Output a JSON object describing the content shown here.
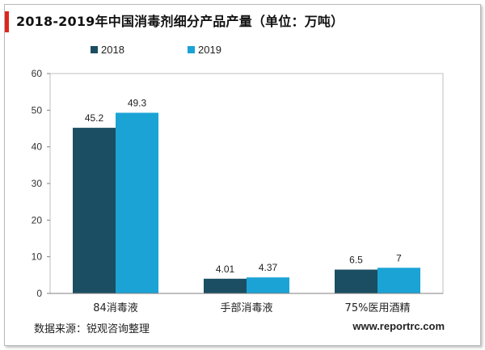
{
  "chart_data": {
    "type": "bar",
    "title": "2018-2019年中国消毒剂细分产品产量（单位：万吨）",
    "categories": [
      "84消毒液",
      "手部消毒液",
      "75%医用酒精"
    ],
    "series": [
      {
        "name": "2018",
        "values": [
          45.2,
          4.01,
          6.5
        ],
        "labels": [
          "45.2",
          "4.01",
          "6.5"
        ],
        "color": "#1b4e63"
      },
      {
        "name": "2019",
        "values": [
          49.3,
          4.37,
          7
        ],
        "labels": [
          "49.3",
          "4.37",
          "7"
        ],
        "color": "#1ba3d6"
      }
    ],
    "ylim": [
      0,
      60
    ],
    "yticks": [
      0,
      10,
      20,
      30,
      40,
      50,
      60
    ],
    "grid": false,
    "legend_position": "top"
  },
  "footer": {
    "source": "数据来源：锐观咨询整理",
    "website": "www.reportrc.com"
  }
}
